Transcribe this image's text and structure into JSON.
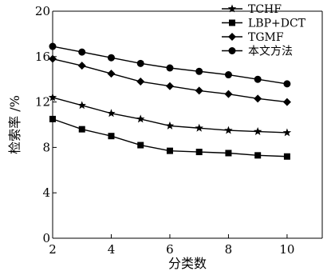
{
  "chart_data": {
    "type": "line",
    "title": "",
    "xlabel": "分类数",
    "ylabel": "检索率 /%",
    "x": [
      2,
      3,
      4,
      5,
      6,
      7,
      8,
      9,
      10
    ],
    "xticks": [
      2,
      4,
      6,
      8,
      10
    ],
    "yticks": [
      0,
      4,
      8,
      12,
      16,
      20
    ],
    "xlim": [
      2,
      11.2
    ],
    "ylim": [
      0,
      20
    ],
    "grid": false,
    "legend_position": "top-right",
    "series": [
      {
        "name": "TCHF",
        "marker": "star",
        "values": [
          12.4,
          11.7,
          11.0,
          10.5,
          9.9,
          9.7,
          9.5,
          9.4,
          9.3
        ]
      },
      {
        "name": "LBP+DCT",
        "marker": "square",
        "values": [
          10.5,
          9.6,
          9.0,
          8.2,
          7.7,
          7.6,
          7.5,
          7.3,
          7.2
        ]
      },
      {
        "name": "TGMF",
        "marker": "diamond",
        "values": [
          15.8,
          15.2,
          14.5,
          13.8,
          13.4,
          13.0,
          12.7,
          12.3,
          12.0
        ]
      },
      {
        "name": "本文方法",
        "marker": "circle",
        "values": [
          16.9,
          16.4,
          15.9,
          15.4,
          15.0,
          14.7,
          14.4,
          14.0,
          13.6
        ]
      }
    ],
    "colors": {
      "line": "#000000",
      "background": "#ffffff"
    }
  }
}
